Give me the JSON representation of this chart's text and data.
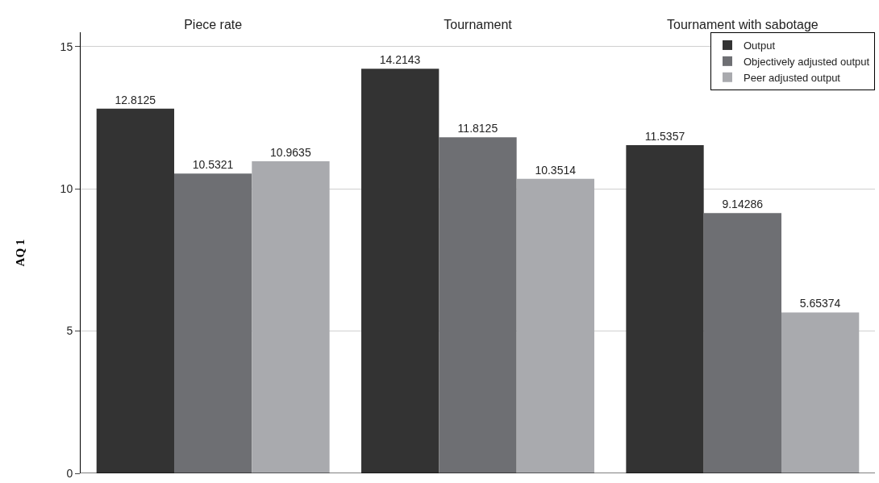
{
  "chart_data": {
    "type": "bar",
    "ylabel": "AQ 1",
    "categories": [
      "Piece rate",
      "Tournament",
      "Tournament with sabotage"
    ],
    "series": [
      {
        "name": "Output",
        "color": "#333333",
        "values": [
          12.8125,
          14.2143,
          11.5357
        ]
      },
      {
        "name": "Objectively adjusted output",
        "color": "#6e6f73",
        "values": [
          10.5321,
          11.8125,
          9.14286
        ]
      },
      {
        "name": "Peer adjusted output",
        "color": "#a9aaae",
        "values": [
          10.9635,
          10.3514,
          5.65374
        ]
      }
    ],
    "ylim": [
      0,
      15.5
    ],
    "yticks": [
      0,
      5,
      10,
      15
    ],
    "grid": "y",
    "data_labels": true,
    "legend": "top right"
  }
}
